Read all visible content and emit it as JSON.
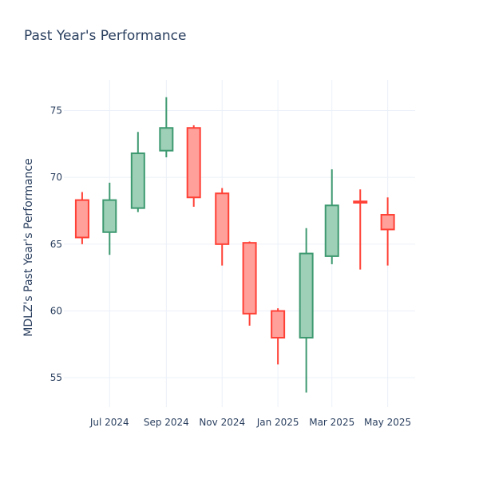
{
  "chart_data": {
    "type": "candlestick",
    "title": "Past Year's Performance",
    "xlabel": "",
    "ylabel": "MDLZ's Past Year's Performance",
    "ylim": [
      52.8,
      77.3
    ],
    "yticks": [
      55,
      60,
      65,
      70,
      75
    ],
    "ytick_labels": [
      "55",
      "60",
      "65",
      "70",
      "75"
    ],
    "xlim": [
      "2024-05-12",
      "2025-05-31"
    ],
    "xticks": [
      "2024-07-01",
      "2024-09-01",
      "2024-11-01",
      "2025-01-01",
      "2025-03-01",
      "2025-05-01"
    ],
    "xtick_labels": [
      "Jul 2024",
      "Sep 2024",
      "Nov 2024",
      "Jan 2025",
      "Mar 2025",
      "May 2025"
    ],
    "grid": true,
    "colors": {
      "increasing_line": "#3d9970",
      "increasing_fill": "#9ecfb7",
      "decreasing_line": "#ff4136",
      "decreasing_fill": "#ffa09b"
    },
    "candles": [
      {
        "date": "2024-06-01",
        "open": 68.3,
        "high": 68.9,
        "low": 65.0,
        "close": 65.5
      },
      {
        "date": "2024-07-01",
        "open": 65.9,
        "high": 69.6,
        "low": 64.2,
        "close": 68.3
      },
      {
        "date": "2024-08-01",
        "open": 67.7,
        "high": 73.4,
        "low": 67.4,
        "close": 71.8
      },
      {
        "date": "2024-09-01",
        "open": 72.0,
        "high": 76.0,
        "low": 71.5,
        "close": 73.7
      },
      {
        "date": "2024-10-01",
        "open": 73.7,
        "high": 73.9,
        "low": 67.8,
        "close": 68.5
      },
      {
        "date": "2024-11-01",
        "open": 68.8,
        "high": 69.2,
        "low": 63.4,
        "close": 65.0
      },
      {
        "date": "2024-12-01",
        "open": 65.1,
        "high": 65.2,
        "low": 58.9,
        "close": 59.8
      },
      {
        "date": "2025-01-01",
        "open": 60.0,
        "high": 60.2,
        "low": 56.0,
        "close": 58.0
      },
      {
        "date": "2025-02-01",
        "open": 58.0,
        "high": 66.2,
        "low": 53.9,
        "close": 64.3
      },
      {
        "date": "2025-03-01",
        "open": 64.1,
        "high": 70.6,
        "low": 63.5,
        "close": 67.9
      },
      {
        "date": "2025-04-01",
        "open": 68.2,
        "high": 69.1,
        "low": 63.1,
        "close": 68.1
      },
      {
        "date": "2025-05-01",
        "open": 67.2,
        "high": 68.5,
        "low": 63.4,
        "close": 66.1
      }
    ]
  }
}
